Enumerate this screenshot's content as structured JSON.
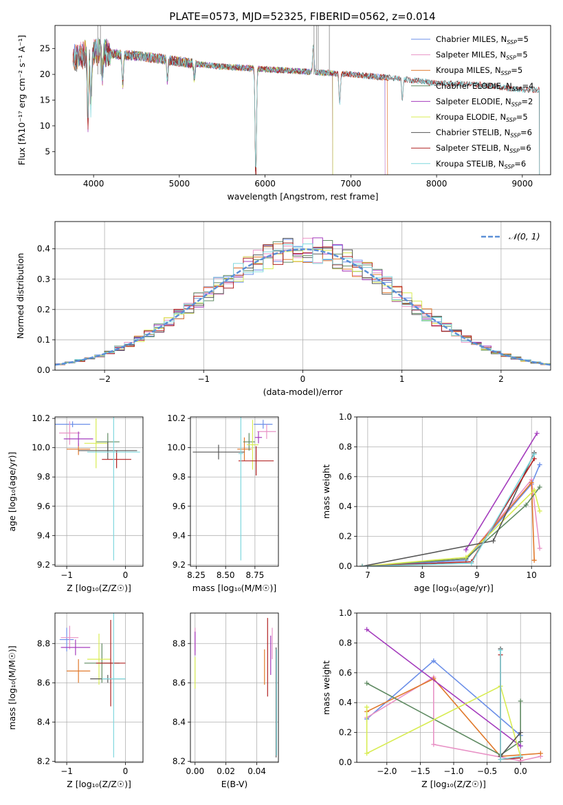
{
  "figure_title": "PLATE=0573, MJD=52325, FIBERID=0562, z=0.014",
  "colors": {
    "Chabrier MILES": "#6a8ee8",
    "Salpeter MILES": "#e892c6",
    "Kroupa MILES": "#e0782a",
    "Chabrier ELODIE": "#5f8a62",
    "Salpeter ELODIE": "#a43cbd",
    "Kroupa ELODIE": "#d8ec52",
    "Chabrier STELIB": "#555555",
    "Salpeter STELIB": "#b02020",
    "Kroupa STELIB": "#7fd8de",
    "gauss": "#5b8fd6"
  },
  "chart_data": [
    {
      "id": "spectrum",
      "type": "line",
      "title": "PLATE=0573, MJD=52325, FIBERID=0562, z=0.014",
      "xlabel": "wavelength [Angstrom, rest frame]",
      "ylabel": "Flux [fλ10⁻¹⁷ erg cm⁻² s⁻¹ A⁻¹]",
      "xlim": [
        3550,
        9330
      ],
      "ylim": [
        0.5,
        29.5
      ],
      "xticks": [
        4000,
        5000,
        6000,
        7000,
        8000,
        9000
      ],
      "yticks": [
        5,
        10,
        15,
        20,
        25
      ],
      "grid": false,
      "legend_position": "top-right",
      "continuum": [
        [
          3760,
          23
        ],
        [
          3900,
          24
        ],
        [
          4000,
          24.5
        ],
        [
          4200,
          24
        ],
        [
          4500,
          23.6
        ],
        [
          4800,
          23
        ],
        [
          5000,
          22.5
        ],
        [
          5200,
          22
        ],
        [
          5500,
          21.5
        ],
        [
          6000,
          21
        ],
        [
          6500,
          20.5
        ],
        [
          7000,
          20
        ],
        [
          7300,
          19.5
        ],
        [
          7500,
          19.3
        ],
        [
          8000,
          18.3
        ],
        [
          8500,
          18
        ],
        [
          9000,
          17
        ],
        [
          9200,
          17
        ]
      ],
      "series": [
        {
          "name": "Chabrier MILES, Nₛₛₚ=5",
          "legend": [
            "Chabrier MILES, N",
            "SSP",
            "=5"
          ],
          "range": [
            3760,
            7400
          ]
        },
        {
          "name": "Salpeter MILES, Nₛₛₚ=5",
          "legend": [
            "Salpeter MILES, N",
            "SSP",
            "=5"
          ],
          "range": [
            3760,
            7400
          ]
        },
        {
          "name": "Kroupa MILES, Nₛₛₚ=5",
          "legend": [
            "Kroupa MILES, N",
            "SSP",
            "=5"
          ],
          "range": [
            3760,
            7430
          ]
        },
        {
          "name": "Chabrier ELODIE, Nₛₛₚ=4",
          "legend": [
            "Chabrier ELODIE, N",
            "SSP",
            "=4"
          ],
          "range": [
            3900,
            6790
          ]
        },
        {
          "name": "Salpeter ELODIE, Nₛₛₚ=2",
          "legend": [
            "Salpeter ELODIE, N",
            "SSP",
            "=2"
          ],
          "range": [
            3900,
            6790
          ]
        },
        {
          "name": "Kroupa ELODIE, Nₛₛₚ=5",
          "legend": [
            "Kroupa ELODIE, N",
            "SSP",
            "=5"
          ],
          "range": [
            3900,
            6790
          ]
        },
        {
          "name": "Chabrier STELIB, Nₛₛₚ=6",
          "legend": [
            "Chabrier STELIB, N",
            "SSP",
            "=6"
          ],
          "range": [
            3760,
            9200
          ]
        },
        {
          "name": "Salpeter STELIB, Nₛₛₚ=6",
          "legend": [
            "Salpeter STELIB, N",
            "SSP",
            "=6"
          ],
          "range": [
            3760,
            9200
          ]
        },
        {
          "name": "Kroupa STELIB, Nₛₛₚ=6",
          "legend": [
            "Kroupa STELIB, N",
            "SSP",
            "=6"
          ],
          "range": [
            3760,
            9200
          ]
        }
      ]
    },
    {
      "id": "residuals",
      "type": "line",
      "xlabel": "(data-model)/error",
      "ylabel": "Normed distribution",
      "xlim": [
        -2.5,
        2.5
      ],
      "ylim": [
        0,
        0.49
      ],
      "xticks": [
        -2,
        -1,
        0,
        1,
        2
      ],
      "yticks": [
        0.0,
        0.1,
        0.2,
        0.3,
        0.4
      ],
      "grid": true,
      "legend_position": "top-right",
      "legend": "𝒩(0, 1)",
      "bin_width": 0.1
    },
    {
      "id": "age_vs_Z",
      "type": "scatter",
      "xlabel": "Z [log₁₀(Z/Z☉)]",
      "ylabel": "age  [log₁₀(age/yr)]",
      "xlim": [
        -1.2,
        0.3
      ],
      "ylim": [
        9.19,
        10.21
      ],
      "xticks": [
        -1,
        0
      ],
      "yticks": [
        9.2,
        9.4,
        9.6,
        9.8,
        10.0,
        10.2
      ],
      "grid": true,
      "points": [
        {
          "model": "Chabrier MILES",
          "x": -0.9,
          "xerr": 0.3,
          "y": 10.16,
          "yerr": 0.02
        },
        {
          "model": "Salpeter MILES",
          "x": -0.95,
          "xerr": 0.18,
          "y": 10.1,
          "yerr": 0.08
        },
        {
          "model": "Kroupa MILES",
          "x": -0.8,
          "xerr": 0.2,
          "y": 9.99,
          "yerr": 0.04
        },
        {
          "model": "Chabrier ELODIE",
          "x": -0.3,
          "xerr": 0.2,
          "y": 10.04,
          "yerr": 0.06
        },
        {
          "model": "Salpeter ELODIE",
          "x": -0.8,
          "xerr": 0.25,
          "y": 10.06,
          "yerr": 0.05
        },
        {
          "model": "Kroupa ELODIE",
          "x": -0.5,
          "xerr": 0.2,
          "y": 10.03,
          "yerr": 0.17
        },
        {
          "model": "Chabrier STELIB",
          "x": -0.3,
          "xerr": 0.5,
          "y": 9.98,
          "yerr": 0.06
        },
        {
          "model": "Salpeter STELIB",
          "x": -0.15,
          "xerr": 0.25,
          "y": 9.92,
          "yerr": 0.06
        },
        {
          "model": "Kroupa STELIB",
          "x": -0.2,
          "xerr": 0.45,
          "y": 9.97,
          "yerr": 0.74
        }
      ]
    },
    {
      "id": "age_vs_mass",
      "type": "scatter",
      "xlabel": "mass [log₁₀(M/M☉)]",
      "ylabel": "",
      "xlim": [
        8.2,
        8.95
      ],
      "ylim": [
        9.19,
        10.21
      ],
      "xticks": [
        8.25,
        8.5,
        8.75
      ],
      "yticks": [
        9.2,
        9.4,
        9.6,
        9.8,
        10.0,
        10.2
      ],
      "grid": true,
      "points": [
        {
          "model": "Chabrier MILES",
          "x": 8.82,
          "xerr": 0.08,
          "y": 10.16,
          "yerr": 0.03
        },
        {
          "model": "Salpeter MILES",
          "x": 8.85,
          "xerr": 0.08,
          "y": 10.11,
          "yerr": 0.05
        },
        {
          "model": "Kroupa MILES",
          "x": 8.66,
          "xerr": 0.06,
          "y": 9.99,
          "yerr": 0.08
        },
        {
          "model": "Chabrier ELODIE",
          "x": 8.7,
          "xerr": 0.05,
          "y": 10.04,
          "yerr": 0.06
        },
        {
          "model": "Salpeter ELODIE",
          "x": 8.78,
          "xerr": 0.03,
          "y": 10.07,
          "yerr": 0.04
        },
        {
          "model": "Kroupa ELODIE",
          "x": 8.73,
          "xerr": 0.05,
          "y": 10.02,
          "yerr": 0.17
        },
        {
          "model": "Chabrier STELIB",
          "x": 8.44,
          "xerr": 0.22,
          "y": 9.97,
          "yerr": 0.05
        },
        {
          "model": "Salpeter STELIB",
          "x": 8.76,
          "xerr": 0.15,
          "y": 9.91,
          "yerr": 0.1
        },
        {
          "model": "Kroupa STELIB",
          "x": 8.63,
          "xerr": 0.02,
          "y": 9.96,
          "yerr": 0.73
        }
      ]
    },
    {
      "id": "weight_vs_age",
      "type": "line",
      "xlabel": "age  [log₁₀(age/yr)]",
      "ylabel": "mass weight",
      "xlim": [
        6.8,
        10.35
      ],
      "ylim": [
        0,
        1.0
      ],
      "xticks": [
        7,
        8,
        9,
        10
      ],
      "yticks": [
        0.0,
        0.2,
        0.4,
        0.6,
        0.8,
        1.0
      ],
      "grid": true,
      "series": [
        {
          "model": "Chabrier MILES",
          "x": [
            6.9,
            8.8,
            10.0,
            10.15
          ],
          "y": [
            0.0,
            0.04,
            0.55,
            0.68
          ]
        },
        {
          "model": "Salpeter MILES",
          "x": [
            6.9,
            8.8,
            10.0,
            10.15
          ],
          "y": [
            0.0,
            0.05,
            0.58,
            0.12
          ]
        },
        {
          "model": "Kroupa MILES",
          "x": [
            6.9,
            8.8,
            10.0,
            10.05
          ],
          "y": [
            0.0,
            0.05,
            0.56,
            0.04
          ]
        },
        {
          "model": "Chabrier ELODIE",
          "x": [
            6.9,
            8.8,
            9.9,
            10.15
          ],
          "y": [
            0.0,
            0.05,
            0.41,
            0.53
          ]
        },
        {
          "model": "Salpeter ELODIE",
          "x": [
            8.8,
            10.1
          ],
          "y": [
            0.11,
            0.89
          ]
        },
        {
          "model": "Kroupa ELODIE",
          "x": [
            6.9,
            8.8,
            10.05,
            10.15
          ],
          "y": [
            0.0,
            0.06,
            0.51,
            0.37
          ]
        },
        {
          "model": "Chabrier STELIB",
          "x": [
            6.9,
            9.3,
            10.05
          ],
          "y": [
            0.0,
            0.17,
            0.76
          ]
        },
        {
          "model": "Salpeter STELIB",
          "x": [
            6.9,
            8.9,
            10.05
          ],
          "y": [
            0.0,
            0.03,
            0.72
          ]
        },
        {
          "model": "Kroupa STELIB",
          "x": [
            6.9,
            8.9,
            10.05
          ],
          "y": [
            0.0,
            0.02,
            0.75
          ]
        }
      ]
    },
    {
      "id": "mass_vs_Z",
      "type": "scatter",
      "xlabel": "Z [log₁₀(Z/Z☉)]",
      "ylabel": "mass [log₁₀(M/M☉)]",
      "xlim": [
        -1.2,
        0.3
      ],
      "ylim": [
        8.195,
        8.955
      ],
      "xticks": [
        -1,
        0
      ],
      "yticks": [
        8.2,
        8.4,
        8.6,
        8.8
      ],
      "grid": true,
      "points": [
        {
          "model": "Chabrier MILES",
          "x": -1.0,
          "xerr": 0.12,
          "y": 8.82,
          "yerr": 0.06
        },
        {
          "model": "Salpeter MILES",
          "x": -0.95,
          "xerr": 0.15,
          "y": 8.83,
          "yerr": 0.06
        },
        {
          "model": "Kroupa MILES",
          "x": -0.8,
          "xerr": 0.2,
          "y": 8.66,
          "yerr": 0.06
        },
        {
          "model": "Chabrier ELODIE",
          "x": -0.4,
          "xerr": 0.3,
          "y": 8.7,
          "yerr": 0.1
        },
        {
          "model": "Salpeter ELODIE",
          "x": -0.85,
          "xerr": 0.25,
          "y": 8.78,
          "yerr": 0.04
        },
        {
          "model": "Kroupa ELODIE",
          "x": -0.45,
          "xerr": 0.2,
          "y": 8.72,
          "yerr": 0.13
        },
        {
          "model": "Chabrier STELIB",
          "x": -0.3,
          "xerr": 0.3,
          "y": 8.62,
          "yerr": 0.02
        },
        {
          "model": "Salpeter STELIB",
          "x": -0.25,
          "xerr": 0.25,
          "y": 8.7,
          "yerr": 0.22
        },
        {
          "model": "Kroupa STELIB",
          "x": -0.2,
          "xerr": 0.2,
          "y": 8.62,
          "yerr": 0.4
        }
      ]
    },
    {
      "id": "mass_vs_EBV",
      "type": "scatter",
      "xlabel": "E(B-V)",
      "ylabel": "",
      "xlim": [
        -0.003,
        0.054
      ],
      "ylim": [
        8.195,
        8.955
      ],
      "xticks": [
        0.0,
        0.02,
        0.04
      ],
      "tick_labels": [
        "0.00",
        "0.02",
        "0.04"
      ],
      "yticks": [
        8.2,
        8.4,
        8.6,
        8.8
      ],
      "grid": true,
      "points": [
        {
          "model": "Salpeter MILES",
          "x": 0.0,
          "y": 8.82,
          "yerr": 0.06
        },
        {
          "model": "Salpeter ELODIE",
          "x": 0.0,
          "y": 8.8,
          "yerr": 0.06
        },
        {
          "model": "Kroupa ELODIE",
          "x": 0.0,
          "y": 8.65,
          "yerr": 0.08
        },
        {
          "model": "Kroupa MILES",
          "x": 0.045,
          "y": 8.68,
          "yerr": 0.09
        },
        {
          "model": "Salpeter STELIB",
          "x": 0.047,
          "y": 8.73,
          "yerr": 0.2
        },
        {
          "model": "Salpeter ELODIE",
          "x": 0.049,
          "y": 8.74,
          "yerr": 0.1
        },
        {
          "model": "Salpeter MILES",
          "x": 0.05,
          "y": 8.8,
          "yerr": 0.08
        },
        {
          "model": "Chabrier STELIB",
          "x": 0.0525,
          "y": 8.5,
          "yerr": 0.28
        },
        {
          "model": "Kroupa STELIB",
          "x": 0.0528,
          "y": 8.5,
          "yerr": 0.27
        }
      ]
    },
    {
      "id": "weight_vs_Z",
      "type": "line",
      "xlabel": "Z [log₁₀(Z/Z☉)]",
      "ylabel": "mass weight",
      "xlim": [
        -2.45,
        0.45
      ],
      "ylim": [
        0,
        1.0
      ],
      "xticks": [
        -2.0,
        -1.5,
        -1.0,
        -0.5,
        0.0
      ],
      "tick_labels": [
        "−2.0",
        "−1.5",
        "−1.0",
        "−0.5",
        "0.0"
      ],
      "yticks": [
        0.0,
        0.2,
        0.4,
        0.6,
        0.8,
        1.0
      ],
      "grid": true,
      "series": [
        {
          "model": "Chabrier MILES",
          "x": [
            -2.3,
            -1.3,
            0.0,
            0.0
          ],
          "y": [
            0.29,
            0.68,
            0.18,
            0.11
          ]
        },
        {
          "model": "Salpeter MILES",
          "x": [
            -2.3,
            -1.3,
            -1.3,
            0.0,
            0.3
          ],
          "y": [
            0.3,
            0.57,
            0.12,
            0.01,
            0.04
          ]
        },
        {
          "model": "Kroupa MILES",
          "x": [
            -2.3,
            -1.3,
            -0.3,
            0.3
          ],
          "y": [
            0.34,
            0.56,
            0.04,
            0.06
          ]
        },
        {
          "model": "Chabrier ELODIE",
          "x": [
            -2.3,
            -0.3,
            0.0,
            0.0
          ],
          "y": [
            0.53,
            0.05,
            0.14,
            0.41
          ]
        },
        {
          "model": "Salpeter ELODIE",
          "x": [
            -2.3,
            0.0
          ],
          "y": [
            0.89,
            0.11
          ]
        },
        {
          "model": "Kroupa ELODIE",
          "x": [
            -2.3,
            -2.3,
            -0.3,
            0.0
          ],
          "y": [
            0.37,
            0.06,
            0.51,
            0.04
          ]
        },
        {
          "model": "Chabrier STELIB",
          "x": [
            -0.3,
            -0.3,
            0.0
          ],
          "y": [
            0.76,
            0.04,
            0.2
          ]
        },
        {
          "model": "Salpeter STELIB",
          "x": [
            -0.3,
            -0.3,
            0.0
          ],
          "y": [
            0.72,
            0.02,
            0.03
          ]
        },
        {
          "model": "Kroupa STELIB",
          "x": [
            -0.3,
            -0.3,
            0.0
          ],
          "y": [
            0.75,
            0.02,
            0.04
          ]
        }
      ]
    }
  ]
}
